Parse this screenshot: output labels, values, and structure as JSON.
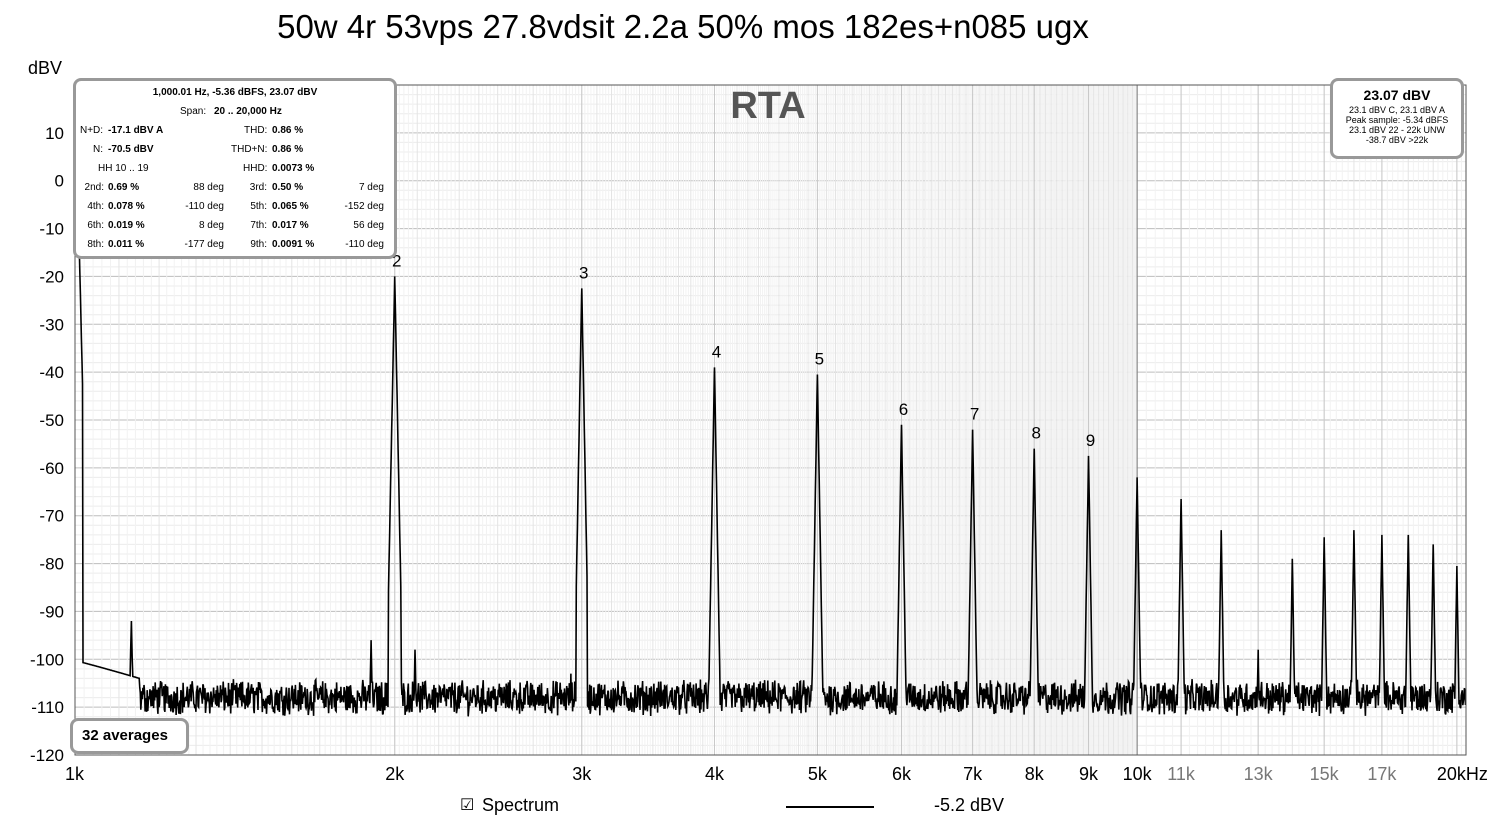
{
  "chart_data": {
    "type": "line",
    "title": "50w 4r 53vps 27.8vdsit 2.2a 50% mos 182es+n085 ugx",
    "watermark": "RTA",
    "ylabel": "dBV",
    "xlim": [
      1000,
      20400
    ],
    "ylim": [
      -120,
      20
    ],
    "x_scale": "log",
    "grid": true,
    "y_ticks": [
      10,
      0,
      -10,
      -20,
      -30,
      -40,
      -50,
      -60,
      -70,
      -80,
      -90,
      -100,
      -110,
      -120
    ],
    "x_ticks": [
      {
        "value": 1000,
        "label": "1k",
        "minor": false
      },
      {
        "value": 2000,
        "label": "2k",
        "minor": false
      },
      {
        "value": 3000,
        "label": "3k",
        "minor": false
      },
      {
        "value": 4000,
        "label": "4k",
        "minor": false
      },
      {
        "value": 5000,
        "label": "5k",
        "minor": false
      },
      {
        "value": 6000,
        "label": "6k",
        "minor": false
      },
      {
        "value": 7000,
        "label": "7k",
        "minor": false
      },
      {
        "value": 8000,
        "label": "8k",
        "minor": false
      },
      {
        "value": 9000,
        "label": "9k",
        "minor": false
      },
      {
        "value": 10000,
        "label": "10k",
        "minor": false
      },
      {
        "value": 11000,
        "label": "11k",
        "minor": true
      },
      {
        "value": 13000,
        "label": "13k",
        "minor": true
      },
      {
        "value": 15000,
        "label": "15k",
        "minor": true
      },
      {
        "value": 17000,
        "label": "17k",
        "minor": true
      },
      {
        "value": 20000,
        "label": "20kHz",
        "minor": false
      }
    ],
    "series": [
      {
        "name": "Spectrum",
        "color": "#000000",
        "noise_floor": -108,
        "peaks": [
          {
            "x": 1000,
            "y": 23.07
          },
          {
            "x": 1130,
            "y": -92
          },
          {
            "x": 1900,
            "y": -96
          },
          {
            "x": 2000,
            "y": -20
          },
          {
            "x": 2090,
            "y": -98
          },
          {
            "x": 2930,
            "y": -103
          },
          {
            "x": 3000,
            "y": -22.5
          },
          {
            "x": 4000,
            "y": -39
          },
          {
            "x": 5000,
            "y": -40.5
          },
          {
            "x": 6000,
            "y": -51
          },
          {
            "x": 7000,
            "y": -52
          },
          {
            "x": 8000,
            "y": -56
          },
          {
            "x": 9000,
            "y": -57.5
          },
          {
            "x": 10000,
            "y": -62
          },
          {
            "x": 11000,
            "y": -66.5
          },
          {
            "x": 12000,
            "y": -73
          },
          {
            "x": 13000,
            "y": -98
          },
          {
            "x": 14000,
            "y": -79
          },
          {
            "x": 15000,
            "y": -74.5
          },
          {
            "x": 16000,
            "y": -73
          },
          {
            "x": 17000,
            "y": -74
          },
          {
            "x": 18000,
            "y": -74
          },
          {
            "x": 19000,
            "y": -76
          },
          {
            "x": 20000,
            "y": -80.5
          }
        ]
      }
    ],
    "harmonic_labels": [
      {
        "n": "2",
        "x": 2000,
        "y": -20
      },
      {
        "n": "3",
        "x": 3000,
        "y": -22.5
      },
      {
        "n": "4",
        "x": 4000,
        "y": -39
      },
      {
        "n": "5",
        "x": 5000,
        "y": -40.5
      },
      {
        "n": "6",
        "x": 6000,
        "y": -51
      },
      {
        "n": "7",
        "x": 7000,
        "y": -52
      },
      {
        "n": "8",
        "x": 8000,
        "y": -56
      },
      {
        "n": "9",
        "x": 9000,
        "y": -57.5
      }
    ]
  },
  "stats": {
    "header": "1,000.01 Hz, -5.36 dBFS, 23.07 dBV",
    "span_label": "Span:",
    "span_value": "20 .. 20,000 Hz",
    "nd_label": "N+D:",
    "nd_value": "-17.1 dBV A",
    "thd_label": "THD:",
    "thd_value": "0.86 %",
    "n_label": "N:",
    "n_value": "-70.5 dBV",
    "thdn_label": "THD+N:",
    "thdn_value": "0.86 %",
    "hh_label": "HH 10 .. 19",
    "hhd_label": "HHD:",
    "hhd_value": "0.0073 %",
    "harmonics": [
      {
        "l1": "2nd:",
        "v1": "0.69 %",
        "d1": "88 deg",
        "l2": "3rd:",
        "v2": "0.50 %",
        "d2": "7 deg"
      },
      {
        "l1": "4th:",
        "v1": "0.078 %",
        "d1": "-110 deg",
        "l2": "5th:",
        "v2": "0.065 %",
        "d2": "-152 deg"
      },
      {
        "l1": "6th:",
        "v1": "0.019 %",
        "d1": "8 deg",
        "l2": "7th:",
        "v2": "0.017 %",
        "d2": "56 deg"
      },
      {
        "l1": "8th:",
        "v1": "0.011 %",
        "d1": "-177 deg",
        "l2": "9th:",
        "v2": "0.0091 %",
        "d2": "-110 deg"
      }
    ]
  },
  "peak_box": {
    "main": "23.07 dBV",
    "line1": "23.1 dBV C, 23.1 dBV A",
    "line2": "Peak sample: -5.34 dBFS",
    "line3": "23.1 dBV 22 - 22k UNW",
    "line4": "-38.7 dBV >22k"
  },
  "averages_label": "32 averages",
  "legend": {
    "checkbox": "☑",
    "label": "Spectrum",
    "level": "-5.2 dBV"
  }
}
